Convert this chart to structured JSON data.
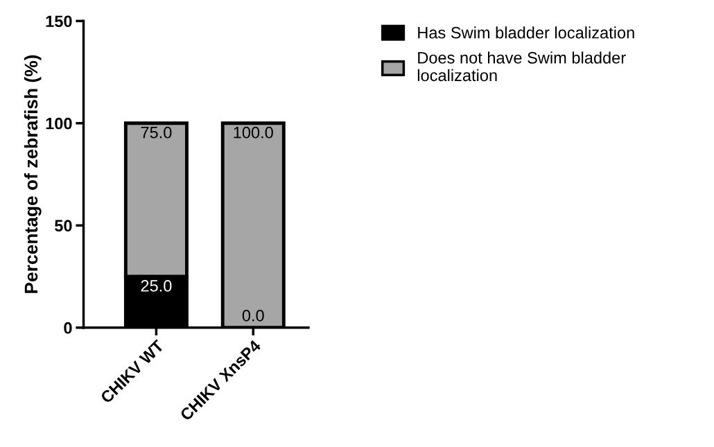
{
  "chart_data": {
    "type": "bar",
    "stacked": true,
    "ylabel": "Percentage of zebrafish (%)",
    "categories": [
      "CHIKV WT",
      "CHIKV XnsP4"
    ],
    "series": [
      {
        "name": "Has Swim bladder localization",
        "color": "#000000",
        "values": [
          25.0,
          0.0
        ],
        "value_labels": [
          "25.0",
          "0.0"
        ]
      },
      {
        "name": "Does not have Swim bladder\nlocalization",
        "color": "#a6a6a6",
        "values": [
          75.0,
          100.0
        ],
        "value_labels": [
          "75.0",
          "100.0"
        ]
      }
    ],
    "ylim": [
      0,
      150
    ],
    "yticks": [
      0,
      50,
      100,
      150
    ],
    "legend": "top right",
    "grid": false
  }
}
